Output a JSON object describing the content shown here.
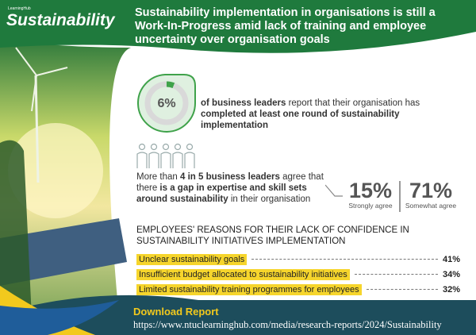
{
  "logo": {
    "brand": "LearningHub",
    "name": "Sustainability"
  },
  "header": {
    "title": "Sustainability implementation in organisations is still a Work-In-Progress amid lack of training and employee uncertainty over organisation goals"
  },
  "stat_completed": {
    "value": 6,
    "label": "6%",
    "parts": [
      "of business leaders",
      " report that their organisation has ",
      "completed at least one round of sustainability implementation"
    ]
  },
  "stat_gap": {
    "parts": [
      "More than ",
      "4 in 5 business leaders",
      " agree that there ",
      "is a gap in expertise and skill sets around sustainability",
      " in their organisation"
    ],
    "agree": [
      {
        "label": "15%",
        "caption": "Strongly agree"
      },
      {
        "label": "71%",
        "caption": "Somewhat agree"
      }
    ]
  },
  "reasons": {
    "title": "EMPLOYEES' REASONS FOR THEIR LACK OF CONFIDENCE IN SUSTAINABILITY INITIATIVES IMPLEMENTATION",
    "rows": [
      {
        "text": "Unclear sustainability goals",
        "label": "41%"
      },
      {
        "text": "Insufficient budget allocated to sustainability initiatives",
        "label": "34%"
      },
      {
        "text": "Limited sustainability training programmes for employees",
        "label": "32%"
      }
    ]
  },
  "footer": {
    "title": "Download Report",
    "url": "https://www.ntuclearninghub.com/media/research-reports/2024/Sustainability"
  }
}
